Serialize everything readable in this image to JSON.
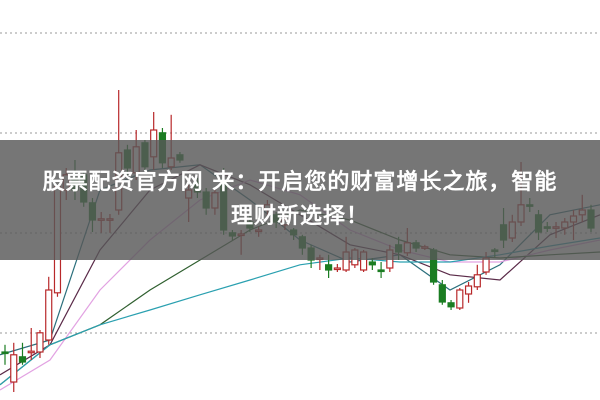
{
  "banner": {
    "line1": "股票配资官方网 来：开启您的财富增长之旅，智能",
    "line2": "理财新选择！"
  },
  "chart_data": {
    "type": "candlestick",
    "title": "",
    "xlabel": "",
    "ylabel": "",
    "ylim": [
      0,
      100
    ],
    "grid": "horizontal-dashed",
    "candle_format": [
      "open",
      "high",
      "low",
      "close"
    ],
    "candles": [
      [
        12,
        13.8,
        8.8,
        11.8
      ],
      [
        4.5,
        14.3,
        2,
        11.3
      ],
      [
        10.8,
        14.3,
        8.8,
        9.5
      ],
      [
        12,
        18,
        10,
        12.2
      ],
      [
        12,
        17.5,
        10.5,
        16.8
      ],
      [
        15,
        30.8,
        13.8,
        27.5
      ],
      [
        26.8,
        53.8,
        25.8,
        53.3
      ],
      [
        52.5,
        58,
        50,
        56.3
      ],
      [
        55.5,
        60,
        50,
        52.5
      ],
      [
        56.3,
        57,
        48.3,
        49.5
      ],
      [
        49.3,
        50.5,
        42,
        45
      ],
      [
        45,
        47,
        41.8,
        45.3
      ],
      [
        45,
        46.5,
        41.8,
        45.3
      ],
      [
        47.5,
        77.5,
        46.3,
        61.8
      ],
      [
        62.5,
        63.8,
        56.3,
        58
      ],
      [
        56.8,
        67.5,
        55,
        63.3
      ],
      [
        64.3,
        65,
        57.5,
        58.3
      ],
      [
        60.8,
        72,
        57.5,
        67.5
      ],
      [
        66.8,
        68,
        58,
        59.3
      ],
      [
        58.3,
        71.3,
        57.5,
        60.5
      ],
      [
        61.3,
        62,
        59.3,
        60
      ],
      [
        50.5,
        53.8,
        44.5,
        52.5
      ],
      [
        54.5,
        55.5,
        50.5,
        52
      ],
      [
        52,
        53,
        46.3,
        48
      ],
      [
        48,
        53,
        46.3,
        51.8
      ],
      [
        55,
        58,
        41.3,
        42.5
      ],
      [
        41.8,
        42.5,
        40,
        41
      ],
      [
        41.3,
        42.5,
        36.3,
        41.5
      ],
      [
        44.5,
        46,
        42,
        43
      ],
      [
        42.5,
        43.3,
        40.8,
        42.5
      ],
      [
        47.5,
        50,
        46,
        48.8
      ],
      [
        46.3,
        47,
        43,
        44.5
      ],
      [
        43.8,
        46.3,
        42.5,
        45
      ],
      [
        42.5,
        43,
        40,
        41.3
      ],
      [
        40.8,
        41.3,
        36.3,
        38
      ],
      [
        38,
        38.8,
        33,
        35
      ],
      [
        35.3,
        36.3,
        32.5,
        35.5
      ],
      [
        33.8,
        36.3,
        30.5,
        32.5
      ],
      [
        33,
        34,
        32,
        33
      ],
      [
        32.5,
        40.8,
        32,
        37
      ],
      [
        33.8,
        38,
        33,
        37.5
      ],
      [
        32.5,
        37.5,
        32,
        37
      ],
      [
        34.5,
        35.5,
        32.5,
        33.8
      ],
      [
        32.5,
        34.5,
        30.5,
        32.3
      ],
      [
        33,
        38.8,
        32,
        37.5
      ],
      [
        38.8,
        40.8,
        35,
        37
      ],
      [
        36.8,
        43,
        36,
        39.3
      ],
      [
        39.3,
        40,
        37,
        38
      ],
      [
        38.3,
        38.8,
        37.5,
        38.3
      ],
      [
        37.5,
        38,
        28.8,
        29.5
      ],
      [
        28.8,
        30,
        23.8,
        24.5
      ],
      [
        24.3,
        25,
        22.5,
        23.3
      ],
      [
        23,
        28,
        22.5,
        27.5
      ],
      [
        26.5,
        29.5,
        24.3,
        28.5
      ],
      [
        28.3,
        33.8,
        27.5,
        31.3
      ],
      [
        32,
        37,
        31.3,
        35.5
      ],
      [
        37.5,
        38,
        35.5,
        37.3
      ],
      [
        43.8,
        48,
        38,
        40
      ],
      [
        40.5,
        46.3,
        39.5,
        44.5
      ],
      [
        44.5,
        59.5,
        43.5,
        48.8
      ],
      [
        48.8,
        50.5,
        47,
        48.5
      ],
      [
        46.3,
        47.5,
        40,
        42
      ],
      [
        43.3,
        44.5,
        42,
        43
      ],
      [
        43,
        44.5,
        40.5,
        43.3
      ],
      [
        43,
        45.5,
        41.3,
        44.5
      ],
      [
        44.5,
        47.5,
        40,
        46
      ],
      [
        46.3,
        51.3,
        44.5,
        47.5
      ],
      [
        47.5,
        48.8,
        42,
        43
      ]
    ],
    "moving_averages": [
      {
        "color": "#2b6f7c",
        "values": [
          11.3,
          15,
          52.5,
          57.5,
          58.8,
          50,
          40,
          34.5,
          36.3,
          27.5,
          33.8,
          46.3,
          48.8
        ]
      },
      {
        "color": "#5a2a48",
        "values": [
          6.3,
          13.8,
          37.5,
          52.5,
          58.8,
          53.8,
          46.3,
          38.8,
          36.3,
          31.3,
          30,
          41.3,
          46.3
        ]
      },
      {
        "color": "#e2a2e2",
        "values": [
          2.5,
          10,
          27.5,
          40,
          50,
          55,
          51.3,
          42.5,
          37.5,
          34.5,
          34.5,
          37.5,
          40
        ]
      },
      {
        "color": "#2f5f2f",
        "values": [
          3.8,
          13.8,
          18.8,
          27.5,
          35,
          42.5,
          47.5,
          45,
          40,
          36.3,
          35.5,
          36.3,
          37
        ]
      },
      {
        "color": "#2aa0b0",
        "values": [
          3.8,
          13.8,
          18.8,
          22.5,
          26.3,
          30,
          33.8,
          35.5,
          34.5,
          34.5,
          36.3,
          38.5,
          40.5
        ]
      }
    ],
    "colors": {
      "up": "#b8282a",
      "down": "#1b7d22",
      "grid": "#9a9a9a"
    }
  }
}
